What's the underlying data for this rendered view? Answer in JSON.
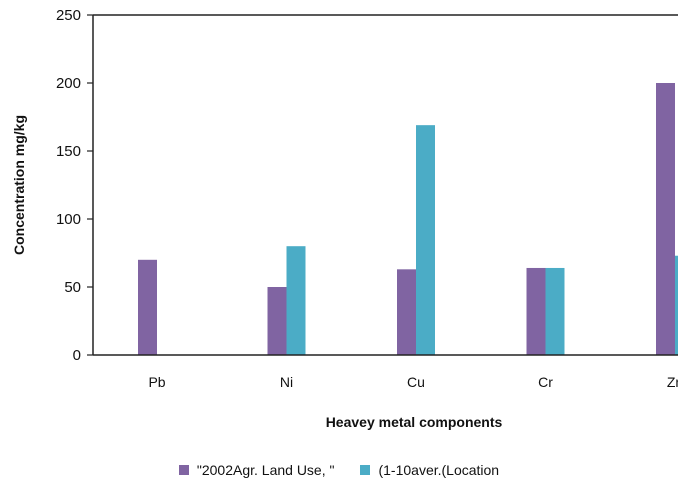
{
  "chart_data": {
    "type": "bar",
    "title": "",
    "xlabel": "Heavey metal components",
    "ylabel": "Concentration mg/kg",
    "categories": [
      "Pb",
      "Ni",
      "Cu",
      "Cr",
      "Zn"
    ],
    "ylim": [
      0,
      250
    ],
    "yticks": [
      0,
      50,
      100,
      150,
      200,
      250
    ],
    "grid": false,
    "legend_position": "bottom",
    "series": [
      {
        "name": "\"2002Agr. Land Use, \"",
        "color": "#8064a2",
        "values": [
          70,
          50,
          63,
          64,
          200
        ]
      },
      {
        "name": "(1-10aver.(Location",
        "color": "#4bacc6",
        "values": [
          null,
          80,
          169,
          64,
          73
        ]
      }
    ]
  }
}
